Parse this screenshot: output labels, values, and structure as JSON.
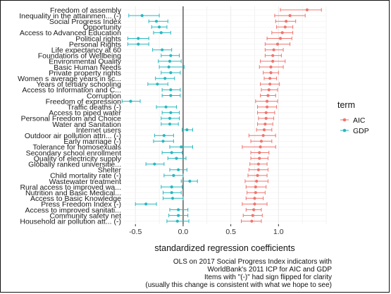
{
  "chart_data": {
    "type": "scatter",
    "xlabel": "standardized regression coefficients",
    "xticks": [
      -0.5,
      0.0,
      0.5,
      1.0
    ],
    "xtick_labels": [
      "-0.5",
      "0.0",
      "0.5",
      "1.0"
    ],
    "xlim": [
      -0.62,
      1.5
    ],
    "grid": true,
    "legend": {
      "title": "term",
      "position": "right",
      "entries": [
        {
          "label": "AIC",
          "color": "#f0746e"
        },
        {
          "label": "GDP",
          "color": "#26b8c0"
        }
      ]
    },
    "caption": [
      "OLS on 2017 Social Progress Index indicators with",
      "WorldBank's 2011 ICP for AIC and GDP",
      "Items with \"(-)\" had sign flipped for clarity",
      "(usually this change is consistent with what we hope to see)"
    ],
    "categories": [
      "Freedom of assembly",
      "Inequality in the attainmen... (-)",
      "Social Progress Index",
      "Opportunity",
      "Access to Advanced Education",
      "Political rights",
      "Personal Rights",
      "Life expectancy at 60",
      "Foundations of Wellbeing",
      "Environmental Quality",
      "Basic Human Needs",
      "Private property rights",
      "Women s average years in sc...",
      "Years of tertiary schooling",
      "Access to Information and C...",
      "Corruption",
      "Freedom of expression",
      "Traffic deaths (-)",
      "Access to piped water",
      "Personal Freedom and Choice",
      "Water and Sanitation",
      "Internet users",
      "Outdoor air pollution attri... (-)",
      "Early marriage (-)",
      "Tolerance for homosexuals",
      "Secondary school enrollment",
      "Quality of electricity supply",
      "Globally ranked universitie...",
      "Shelter",
      "Child mortality rate (-)",
      "Wastewater treatment",
      "Rural access to improved wa...",
      "Nutrition and Basic Medical...",
      "Access to Basic Knowledge",
      "Press Freedom Index (-)",
      "Access to improved sanitati...",
      "Community safety net",
      "Household air pollution att... (-)"
    ],
    "series": [
      {
        "name": "AIC",
        "color": "#f0746e",
        "estimate": [
          1.3,
          1.12,
          1.08,
          1.07,
          1.04,
          1.02,
          0.99,
          0.95,
          0.94,
          0.94,
          0.92,
          0.92,
          0.91,
          0.91,
          0.9,
          0.89,
          0.88,
          0.88,
          0.87,
          0.87,
          0.86,
          0.85,
          0.84,
          0.82,
          0.81,
          0.8,
          0.8,
          0.79,
          0.79,
          0.78,
          0.77,
          0.76,
          0.76,
          0.75,
          0.75,
          0.74,
          0.73,
          0.72
        ],
        "lower": [
          1.02,
          0.96,
          0.97,
          0.98,
          0.93,
          0.88,
          0.86,
          0.86,
          0.86,
          0.81,
          0.8,
          0.84,
          0.85,
          0.81,
          0.82,
          0.81,
          0.76,
          0.78,
          0.78,
          0.79,
          0.78,
          0.77,
          0.69,
          0.71,
          0.62,
          0.71,
          0.71,
          0.7,
          0.69,
          0.68,
          0.65,
          0.66,
          0.67,
          0.66,
          0.62,
          0.66,
          0.63,
          0.61
        ],
        "upper": [
          1.45,
          1.28,
          1.18,
          1.15,
          1.15,
          1.14,
          1.12,
          1.05,
          1.03,
          1.07,
          1.05,
          1.0,
          0.98,
          1.01,
          0.99,
          0.97,
          0.99,
          0.98,
          0.96,
          0.95,
          0.94,
          0.93,
          0.97,
          0.93,
          0.97,
          0.9,
          0.89,
          0.88,
          0.89,
          0.88,
          0.89,
          0.87,
          0.86,
          0.84,
          0.88,
          0.82,
          0.83,
          0.82
        ]
      },
      {
        "name": "GDP",
        "color": "#26b8c0",
        "estimate": [
          null,
          -0.43,
          -0.28,
          -0.25,
          -0.23,
          -0.47,
          -0.47,
          -0.22,
          -0.13,
          -0.14,
          -0.15,
          -0.13,
          -0.19,
          -0.27,
          -0.13,
          -0.13,
          -0.55,
          -0.18,
          -0.13,
          -0.14,
          -0.14,
          0.04,
          -0.2,
          -0.21,
          -0.02,
          -0.12,
          -0.07,
          -0.3,
          -0.05,
          -0.1,
          0.07,
          -0.12,
          -0.12,
          -0.11,
          -0.39,
          -0.05,
          -0.05,
          -0.06
        ],
        "lower": [
          null,
          -0.57,
          -0.36,
          -0.33,
          -0.31,
          -0.58,
          -0.58,
          -0.32,
          -0.23,
          -0.26,
          -0.25,
          -0.23,
          -0.29,
          -0.37,
          -0.22,
          -0.22,
          -0.64,
          -0.28,
          -0.22,
          -0.23,
          -0.23,
          -0.01,
          -0.3,
          -0.31,
          -0.14,
          -0.22,
          -0.16,
          -0.39,
          -0.14,
          -0.2,
          -0.02,
          -0.23,
          -0.21,
          -0.21,
          -0.5,
          -0.14,
          -0.15,
          -0.17
        ],
        "upper": [
          null,
          -0.25,
          -0.16,
          -0.17,
          -0.13,
          -0.36,
          -0.36,
          -0.12,
          -0.04,
          -0.02,
          0.01,
          -0.03,
          -0.09,
          -0.16,
          -0.03,
          -0.03,
          -0.45,
          -0.07,
          -0.04,
          -0.04,
          -0.05,
          0.1,
          -0.1,
          -0.1,
          0.1,
          -0.01,
          0.03,
          -0.2,
          0.04,
          0.0,
          0.15,
          -0.01,
          -0.02,
          0.0,
          -0.28,
          0.05,
          0.05,
          0.06
        ]
      }
    ]
  }
}
